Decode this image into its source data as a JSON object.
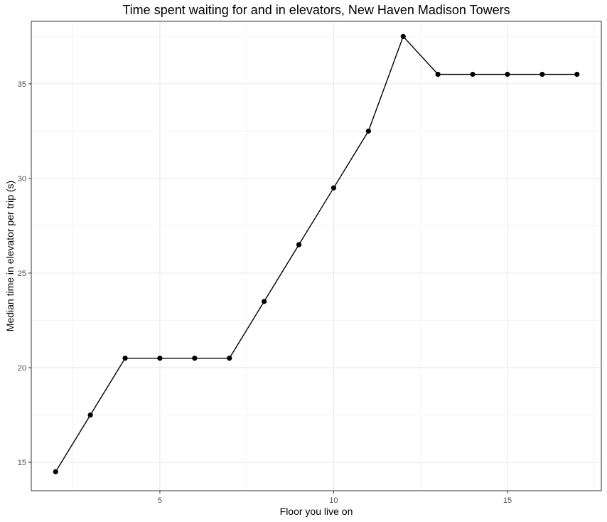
{
  "chart_data": {
    "type": "line",
    "title": "Time spent waiting for and in elevators, New Haven Madison Towers",
    "xlabel": "Floor you live on",
    "ylabel": "Median time in elevator per trip (s)",
    "xlim": [
      1.3,
      17.7
    ],
    "ylim": [
      13.5,
      38.3
    ],
    "x_ticks": [
      5,
      10,
      15
    ],
    "x_tick_labels": [
      "5",
      "10",
      "15"
    ],
    "y_ticks": [
      15,
      20,
      25,
      30,
      35
    ],
    "y_tick_labels": [
      "15",
      "20",
      "25",
      "30",
      "35"
    ],
    "grid": true,
    "show_points": true,
    "colors": {
      "line": "#000000",
      "points": "#000000",
      "grid_major": "#ebebeb",
      "grid_minor": "#f5f5f5",
      "panel_border": "#333333",
      "tick_label": "#4d4d4d"
    },
    "series": [
      {
        "x": [
          2,
          3,
          4,
          5,
          6,
          7,
          8,
          9,
          10,
          11,
          12,
          13,
          14,
          15,
          16,
          17
        ],
        "values": [
          14.5,
          17.5,
          20.5,
          20.5,
          20.5,
          20.5,
          23.5,
          26.5,
          29.5,
          32.5,
          37.5,
          35.5,
          35.5,
          35.5,
          35.5,
          35.5
        ]
      }
    ]
  }
}
